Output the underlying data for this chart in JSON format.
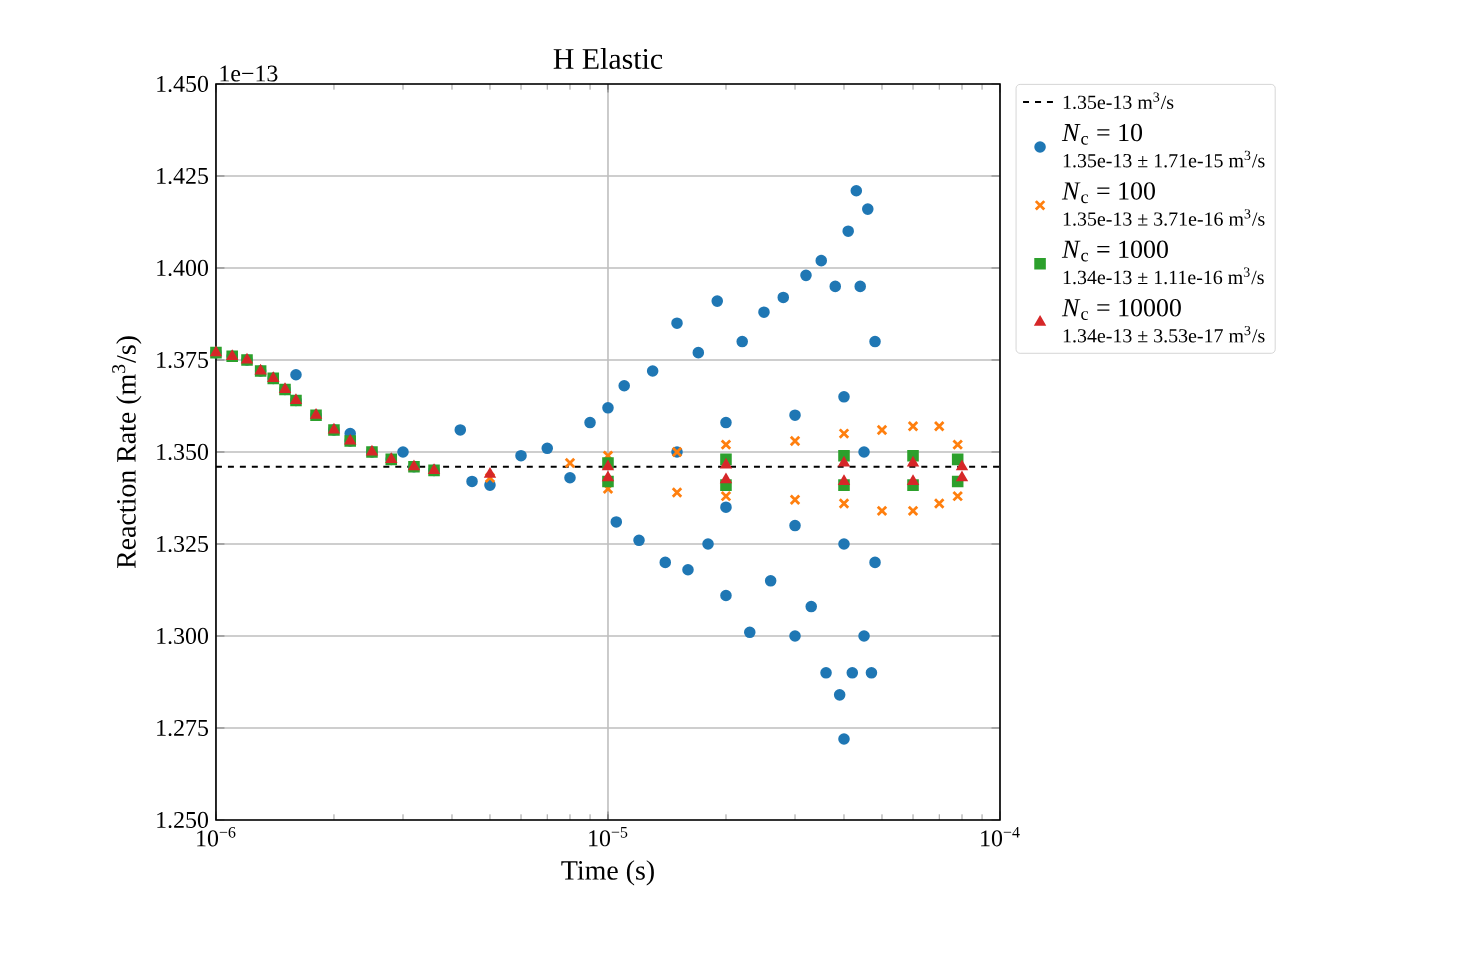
{
  "chart_data": {
    "type": "scatter",
    "title": "H Elastic",
    "xlabel": "Time (s)",
    "ylabel": "Reaction Rate (m$^{3}$/s)",
    "annotations": [
      "1e−13",
      "1.35e-13 ± 1.71e-15 m$^{3}$/s",
      "1.35e-13 ± 3.71e-16 m$^{3}$/s",
      "1.34e-13 ± 1.11e-16 m$^{3}$/s",
      "1.34e-13 ± 3.53e-17 m$^{3}$/s"
    ],
    "log": "x",
    "grid": true,
    "legend": "right",
    "xlim": [
      1e-06,
      0.0001
    ],
    "xticks": [
      {
        "value": 1e-06,
        "label": "10$^{−6}$"
      },
      {
        "value": 1e-05,
        "label": "10$^{−5}$"
      },
      {
        "value": 0.0001,
        "label": "10$^{−4}$"
      }
    ],
    "ylim": [
      1.25,
      1.45
    ],
    "yticks": [
      {
        "value": 1.25,
        "label": "1.250"
      },
      {
        "value": 1.275,
        "label": "1.275"
      },
      {
        "value": 1.3,
        "label": "1.300"
      },
      {
        "value": 1.325,
        "label": "1.325"
      },
      {
        "value": 1.35,
        "label": "1.350"
      },
      {
        "value": 1.375,
        "label": "1.375"
      },
      {
        "value": 1.4,
        "label": "1.400"
      },
      {
        "value": 1.425,
        "label": "1.425"
      },
      {
        "value": 1.45,
        "label": "1.450"
      }
    ],
    "ref_lines": [
      {
        "axis": "y",
        "value": 1.346,
        "label": "1.35e-13 m$^{3}$/s",
        "color": "#000000",
        "line_style": "dashed"
      }
    ],
    "series": [
      {
        "name": "*N*$_{c}$ = 10",
        "color": "#1f77b4",
        "marker": "circle",
        "x": [
          1e-06,
          1.1e-06,
          1.2e-06,
          1.3e-06,
          1.4e-06,
          1.5e-06,
          1.6e-06,
          1.8e-06,
          2e-06,
          2.2e-06,
          2.5e-06,
          2.8e-06,
          3.2e-06,
          3.6e-06,
          1.6e-06,
          2.2e-06,
          3e-06,
          4.2e-06,
          4.5e-06,
          5e-06,
          6e-06,
          7e-06,
          8e-06,
          9e-06,
          1e-05,
          1.05e-05,
          1.1e-05,
          1.2e-05,
          1.3e-05,
          1.4e-05,
          1.5e-05,
          1.6e-05,
          1.7e-05,
          1.8e-05,
          1.9e-05,
          2e-05,
          2.2e-05,
          2.3e-05,
          2.5e-05,
          2.6e-05,
          2.8e-05,
          3e-05,
          3.2e-05,
          3.3e-05,
          3.5e-05,
          3.6e-05,
          3.8e-05,
          3.9e-05,
          4e-05,
          4.1e-05,
          4.2e-05,
          4.3e-05,
          4.4e-05,
          4.5e-05,
          4.6e-05,
          4.7e-05,
          4.8e-05,
          4.8e-05,
          3e-05,
          3e-05,
          4e-05,
          4e-05,
          2e-05,
          2e-05,
          1.5e-05,
          4.5e-05
        ],
        "values": [
          1.377,
          1.376,
          1.375,
          1.372,
          1.37,
          1.367,
          1.364,
          1.36,
          1.356,
          1.353,
          1.35,
          1.348,
          1.346,
          1.345,
          1.371,
          1.355,
          1.35,
          1.356,
          1.342,
          1.341,
          1.349,
          1.351,
          1.343,
          1.358,
          1.362,
          1.331,
          1.368,
          1.326,
          1.372,
          1.32,
          1.385,
          1.318,
          1.377,
          1.325,
          1.391,
          1.311,
          1.38,
          1.301,
          1.388,
          1.315,
          1.392,
          1.3,
          1.398,
          1.308,
          1.402,
          1.29,
          1.395,
          1.284,
          1.272,
          1.41,
          1.29,
          1.421,
          1.395,
          1.3,
          1.416,
          1.29,
          1.38,
          1.32,
          1.36,
          1.33,
          1.365,
          1.325,
          1.358,
          1.335,
          1.35,
          1.35
        ]
      },
      {
        "name": "*N*$_{c}$ = 100",
        "color": "#ff7f0e",
        "marker": "cross",
        "x": [
          5e-06,
          8e-06,
          1e-05,
          1e-05,
          1.5e-05,
          1.5e-05,
          2e-05,
          2e-05,
          3e-05,
          3e-05,
          4e-05,
          4e-05,
          5e-05,
          5e-05,
          6e-05,
          6e-05,
          7e-05,
          7e-05,
          7.8e-05,
          7.8e-05
        ],
        "values": [
          1.343,
          1.347,
          1.349,
          1.34,
          1.35,
          1.339,
          1.352,
          1.338,
          1.353,
          1.337,
          1.355,
          1.336,
          1.356,
          1.334,
          1.357,
          1.334,
          1.357,
          1.336,
          1.352,
          1.338
        ]
      },
      {
        "name": "*N*$_{c}$ = 1000",
        "color": "#2ca02c",
        "marker": "square",
        "x": [
          1e-06,
          1.1e-06,
          1.2e-06,
          1.3e-06,
          1.4e-06,
          1.5e-06,
          1.6e-06,
          1.8e-06,
          2e-06,
          2.2e-06,
          2.5e-06,
          2.8e-06,
          3.2e-06,
          3.6e-06,
          1e-05,
          1e-05,
          2e-05,
          2e-05,
          4e-05,
          4e-05,
          6e-05,
          6e-05,
          7.8e-05,
          7.8e-05
        ],
        "values": [
          1.377,
          1.376,
          1.375,
          1.372,
          1.37,
          1.367,
          1.364,
          1.36,
          1.356,
          1.353,
          1.35,
          1.348,
          1.346,
          1.345,
          1.347,
          1.342,
          1.348,
          1.341,
          1.349,
          1.341,
          1.349,
          1.341,
          1.348,
          1.342
        ]
      },
      {
        "name": "*N*$_{c}$ = 10000",
        "color": "#d62728",
        "marker": "triangle",
        "x": [
          1e-06,
          1.1e-06,
          1.2e-06,
          1.3e-06,
          1.4e-06,
          1.5e-06,
          1.6e-06,
          1.8e-06,
          2e-06,
          2.2e-06,
          2.5e-06,
          2.8e-06,
          3.2e-06,
          3.6e-06,
          5e-06,
          1e-05,
          1e-05,
          2e-05,
          2e-05,
          4e-05,
          4e-05,
          6e-05,
          6e-05,
          8e-05,
          8e-05
        ],
        "values": [
          1.377,
          1.376,
          1.375,
          1.372,
          1.37,
          1.367,
          1.364,
          1.36,
          1.356,
          1.353,
          1.35,
          1.348,
          1.346,
          1.345,
          1.344,
          1.346,
          1.343,
          1.3465,
          1.3425,
          1.347,
          1.342,
          1.347,
          1.342,
          1.346,
          1.343
        ]
      }
    ]
  }
}
